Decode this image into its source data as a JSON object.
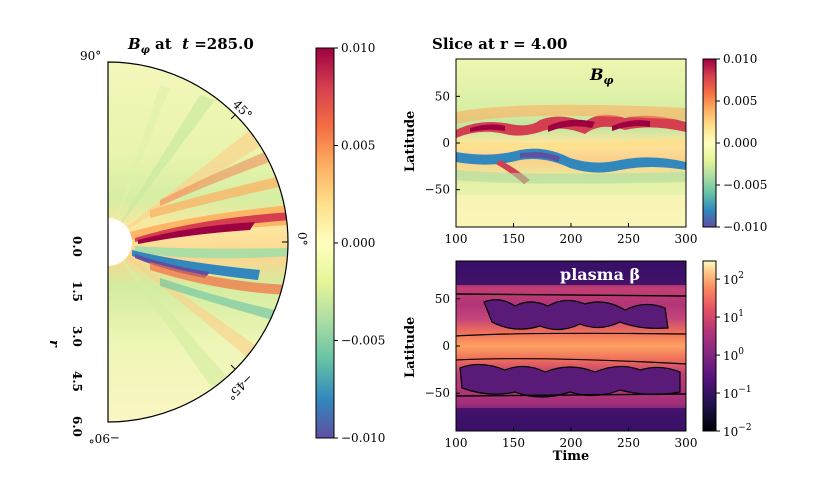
{
  "chart_data": [
    {
      "id": "polar-bphi",
      "type": "heatmap",
      "projection": "polar-wedge",
      "title": "B_φ at  t =285.0",
      "title_var": "B",
      "title_sub": "φ",
      "title_rest": " at  ",
      "title_t": "t",
      "title_val": " =285.0",
      "radial_label": "r",
      "radial_ticks": [
        "0.0",
        "1.5",
        "3.0",
        "4.5",
        "6.0"
      ],
      "angle_ticks": [
        "90°",
        "45°",
        "0°",
        "−45°",
        "−90°"
      ],
      "r_range": [
        0.0,
        6.0
      ],
      "angle_range_deg": [
        -90,
        90
      ],
      "colormap": "Spectral_r",
      "colorbar": {
        "ticks": [
          "0.010",
          "0.005",
          "0.000",
          "−0.005",
          "−0.010"
        ],
        "values": [
          0.01,
          0.005,
          0.0,
          -0.005,
          -0.01
        ],
        "range": [
          -0.01,
          0.01
        ]
      }
    },
    {
      "id": "slice-bphi",
      "type": "heatmap",
      "title": "Slice at  r = 4.00",
      "annotation_var": "B",
      "annotation_sub": "φ",
      "xlabel": "",
      "ylabel": "Latitude",
      "xticks": [
        "100",
        "150",
        "200",
        "250",
        "300"
      ],
      "yticks": [
        "50",
        "0",
        "−50"
      ],
      "xlim": [
        100,
        300
      ],
      "ylim": [
        -90,
        90
      ],
      "colormap": "Spectral_r",
      "colorbar": {
        "ticks": [
          "0.010",
          "0.005",
          "0.000",
          "−0.005",
          "−0.010"
        ],
        "values": [
          0.01,
          0.005,
          0.0,
          -0.005,
          -0.01
        ],
        "range": [
          -0.01,
          0.01
        ]
      }
    },
    {
      "id": "slice-beta",
      "type": "heatmap",
      "annotation": "plasma β",
      "xlabel": "Time",
      "ylabel": "Latitude",
      "xticks": [
        "100",
        "150",
        "200",
        "250",
        "300"
      ],
      "yticks": [
        "50",
        "0",
        "−50"
      ],
      "xlim": [
        100,
        300
      ],
      "ylim": [
        -90,
        90
      ],
      "colormap": "magma",
      "colorbar": {
        "scale": "log",
        "ticks": [
          "10",
          "10",
          "10",
          "10",
          "10"
        ],
        "exponents": [
          "2",
          "1",
          "0",
          "−1",
          "−2"
        ],
        "range": [
          0.01,
          300
        ]
      },
      "contour_level": 1
    }
  ]
}
